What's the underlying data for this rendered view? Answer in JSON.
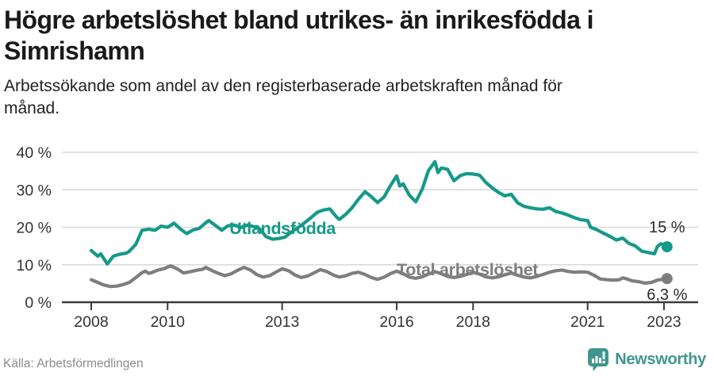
{
  "header": {
    "title_line1": "Högre arbetslöshet bland utrikes- än inrikesfödda i",
    "title_line2": "Simrishamn",
    "subtitle_line1": "Arbetssökande som andel av den registerbaserade arbetskraften månad för",
    "subtitle_line2": "månad."
  },
  "footer": {
    "source": "Källa: Arbetsförmedlingen",
    "logo_text": "Newsworthy"
  },
  "colors": {
    "accent_teal": "#15998a",
    "series_gray": "#7e7e7e",
    "gridline": "#d9d9d9",
    "axis": "#3a3a3a",
    "tick_text": "#333333",
    "annotation_text": "#2b2b2b",
    "logo_teal": "#40968e"
  },
  "chart_data": {
    "type": "line",
    "title": "Högre arbetslöshet bland utrikes- än inrikesfödda i Simrishamn",
    "xlabel": "",
    "ylabel": "Arbetssökande som andel av den registerbaserade arbetskraften",
    "xlim": [
      2007.3,
      2023.9
    ],
    "ylim": [
      0,
      40
    ],
    "grid": true,
    "legend_position": "inline-labels",
    "y_axis": {
      "ticks": [
        {
          "v": 0,
          "label": "0 %"
        },
        {
          "v": 10,
          "label": "10 %"
        },
        {
          "v": 20,
          "label": "20 %"
        },
        {
          "v": 30,
          "label": "30 %"
        },
        {
          "v": 40,
          "label": "40 %"
        }
      ]
    },
    "x_axis": {
      "ticks": [
        {
          "v": 2008,
          "label": "2008"
        },
        {
          "v": 2010,
          "label": "2010"
        },
        {
          "v": 2013,
          "label": "2013"
        },
        {
          "v": 2016,
          "label": "2016"
        },
        {
          "v": 2018,
          "label": "2018"
        },
        {
          "v": 2021,
          "label": "2021"
        },
        {
          "v": 2023,
          "label": "2023"
        }
      ]
    },
    "series": [
      {
        "name": "Utlandsfödda",
        "color": "#15998a",
        "end_label": "15 %",
        "end_label_position": "above",
        "name_anchor": {
          "x": 2011.62,
          "y": 18.2
        },
        "points": [
          [
            2008.0,
            13.8
          ],
          [
            2008.17,
            12.3
          ],
          [
            2008.25,
            12.9
          ],
          [
            2008.42,
            10.2
          ],
          [
            2008.58,
            12.3
          ],
          [
            2008.75,
            12.8
          ],
          [
            2008.92,
            13.1
          ],
          [
            2009.0,
            13.6
          ],
          [
            2009.17,
            15.5
          ],
          [
            2009.33,
            19.2
          ],
          [
            2009.5,
            19.5
          ],
          [
            2009.67,
            19.2
          ],
          [
            2009.83,
            20.3
          ],
          [
            2010.0,
            20.0
          ],
          [
            2010.17,
            21.1
          ],
          [
            2010.33,
            19.6
          ],
          [
            2010.5,
            18.3
          ],
          [
            2010.67,
            19.3
          ],
          [
            2010.83,
            19.7
          ],
          [
            2011.0,
            21.2
          ],
          [
            2011.08,
            21.8
          ],
          [
            2011.25,
            20.5
          ],
          [
            2011.42,
            19.2
          ],
          [
            2011.58,
            20.4
          ],
          [
            2011.75,
            20.6
          ],
          [
            2011.92,
            19.9
          ],
          [
            2012.08,
            20.6
          ],
          [
            2012.25,
            20.2
          ],
          [
            2012.42,
            19.5
          ],
          [
            2012.58,
            17.5
          ],
          [
            2012.75,
            16.8
          ],
          [
            2012.92,
            17.0
          ],
          [
            2013.08,
            17.4
          ],
          [
            2013.25,
            18.8
          ],
          [
            2013.5,
            20.5
          ],
          [
            2013.75,
            22.5
          ],
          [
            2013.92,
            24.0
          ],
          [
            2014.08,
            24.6
          ],
          [
            2014.25,
            24.9
          ],
          [
            2014.42,
            22.8
          ],
          [
            2014.5,
            22.1
          ],
          [
            2014.67,
            23.5
          ],
          [
            2014.83,
            25.2
          ],
          [
            2015.0,
            27.5
          ],
          [
            2015.17,
            29.5
          ],
          [
            2015.33,
            28.2
          ],
          [
            2015.5,
            26.6
          ],
          [
            2015.67,
            28.1
          ],
          [
            2015.83,
            31.0
          ],
          [
            2016.0,
            33.7
          ],
          [
            2016.08,
            31.0
          ],
          [
            2016.17,
            31.6
          ],
          [
            2016.33,
            28.6
          ],
          [
            2016.5,
            26.8
          ],
          [
            2016.67,
            30.2
          ],
          [
            2016.83,
            35.1
          ],
          [
            2017.0,
            37.5
          ],
          [
            2017.08,
            34.6
          ],
          [
            2017.17,
            35.8
          ],
          [
            2017.33,
            35.5
          ],
          [
            2017.5,
            32.4
          ],
          [
            2017.67,
            33.8
          ],
          [
            2017.83,
            34.3
          ],
          [
            2018.0,
            34.2
          ],
          [
            2018.17,
            33.9
          ],
          [
            2018.33,
            32.0
          ],
          [
            2018.5,
            30.5
          ],
          [
            2018.67,
            29.3
          ],
          [
            2018.83,
            28.4
          ],
          [
            2019.0,
            28.8
          ],
          [
            2019.17,
            26.5
          ],
          [
            2019.33,
            25.6
          ],
          [
            2019.5,
            25.2
          ],
          [
            2019.67,
            24.9
          ],
          [
            2019.83,
            24.8
          ],
          [
            2020.0,
            25.2
          ],
          [
            2020.17,
            24.2
          ],
          [
            2020.33,
            23.8
          ],
          [
            2020.5,
            23.2
          ],
          [
            2020.67,
            22.5
          ],
          [
            2020.83,
            22.0
          ],
          [
            2021.0,
            21.8
          ],
          [
            2021.08,
            20.0
          ],
          [
            2021.25,
            19.3
          ],
          [
            2021.42,
            18.4
          ],
          [
            2021.58,
            17.6
          ],
          [
            2021.75,
            16.6
          ],
          [
            2021.92,
            17.1
          ],
          [
            2022.08,
            15.7
          ],
          [
            2022.25,
            15.0
          ],
          [
            2022.42,
            13.6
          ],
          [
            2022.58,
            13.3
          ],
          [
            2022.75,
            12.9
          ],
          [
            2022.83,
            14.9
          ],
          [
            2022.92,
            15.6
          ],
          [
            2023.08,
            14.8
          ]
        ]
      },
      {
        "name": "Total arbetslöshet",
        "color": "#7e7e7e",
        "end_label": "6,3 %",
        "end_label_position": "below",
        "name_anchor": {
          "x": 2016.0,
          "y": 7.2
        },
        "points": [
          [
            2008.0,
            6.0
          ],
          [
            2008.17,
            5.3
          ],
          [
            2008.33,
            4.6
          ],
          [
            2008.5,
            4.2
          ],
          [
            2008.67,
            4.3
          ],
          [
            2008.83,
            4.7
          ],
          [
            2009.0,
            5.3
          ],
          [
            2009.17,
            6.6
          ],
          [
            2009.33,
            7.9
          ],
          [
            2009.42,
            8.3
          ],
          [
            2009.5,
            7.7
          ],
          [
            2009.58,
            7.9
          ],
          [
            2009.75,
            8.6
          ],
          [
            2009.92,
            9.0
          ],
          [
            2010.0,
            9.4
          ],
          [
            2010.08,
            9.7
          ],
          [
            2010.25,
            8.9
          ],
          [
            2010.42,
            7.8
          ],
          [
            2010.58,
            8.1
          ],
          [
            2010.75,
            8.5
          ],
          [
            2010.92,
            8.8
          ],
          [
            2011.0,
            9.3
          ],
          [
            2011.17,
            8.4
          ],
          [
            2011.33,
            7.7
          ],
          [
            2011.5,
            7.1
          ],
          [
            2011.67,
            7.6
          ],
          [
            2011.83,
            8.5
          ],
          [
            2012.0,
            9.3
          ],
          [
            2012.17,
            8.6
          ],
          [
            2012.33,
            7.4
          ],
          [
            2012.5,
            6.7
          ],
          [
            2012.67,
            7.1
          ],
          [
            2012.83,
            8.0
          ],
          [
            2013.0,
            8.9
          ],
          [
            2013.17,
            8.4
          ],
          [
            2013.33,
            7.3
          ],
          [
            2013.5,
            6.6
          ],
          [
            2013.67,
            7.0
          ],
          [
            2013.83,
            7.8
          ],
          [
            2014.0,
            8.7
          ],
          [
            2014.17,
            8.2
          ],
          [
            2014.33,
            7.3
          ],
          [
            2014.5,
            6.7
          ],
          [
            2014.67,
            7.1
          ],
          [
            2014.83,
            7.7
          ],
          [
            2015.0,
            8.0
          ],
          [
            2015.17,
            7.4
          ],
          [
            2015.33,
            6.6
          ],
          [
            2015.5,
            6.1
          ],
          [
            2015.67,
            6.7
          ],
          [
            2015.83,
            7.6
          ],
          [
            2016.0,
            8.3
          ],
          [
            2016.17,
            7.6
          ],
          [
            2016.33,
            6.7
          ],
          [
            2016.5,
            6.4
          ],
          [
            2016.67,
            6.8
          ],
          [
            2016.83,
            7.5
          ],
          [
            2017.0,
            8.2
          ],
          [
            2017.17,
            7.6
          ],
          [
            2017.33,
            6.9
          ],
          [
            2017.5,
            6.6
          ],
          [
            2017.67,
            6.9
          ],
          [
            2017.83,
            7.4
          ],
          [
            2018.0,
            8.0
          ],
          [
            2018.17,
            7.5
          ],
          [
            2018.33,
            6.8
          ],
          [
            2018.5,
            6.5
          ],
          [
            2018.67,
            6.8
          ],
          [
            2018.83,
            7.3
          ],
          [
            2019.0,
            7.8
          ],
          [
            2019.17,
            7.2
          ],
          [
            2019.33,
            6.7
          ],
          [
            2019.5,
            6.5
          ],
          [
            2019.67,
            6.9
          ],
          [
            2019.83,
            7.4
          ],
          [
            2020.0,
            8.0
          ],
          [
            2020.17,
            8.4
          ],
          [
            2020.33,
            8.6
          ],
          [
            2020.5,
            8.2
          ],
          [
            2020.67,
            8.0
          ],
          [
            2020.83,
            8.1
          ],
          [
            2021.0,
            8.0
          ],
          [
            2021.17,
            7.2
          ],
          [
            2021.33,
            6.2
          ],
          [
            2021.5,
            6.0
          ],
          [
            2021.67,
            5.9
          ],
          [
            2021.83,
            6.0
          ],
          [
            2021.92,
            6.5
          ],
          [
            2022.0,
            6.3
          ],
          [
            2022.17,
            5.7
          ],
          [
            2022.33,
            5.5
          ],
          [
            2022.5,
            5.1
          ],
          [
            2022.67,
            5.3
          ],
          [
            2022.83,
            5.9
          ],
          [
            2023.08,
            6.3
          ]
        ]
      }
    ]
  }
}
